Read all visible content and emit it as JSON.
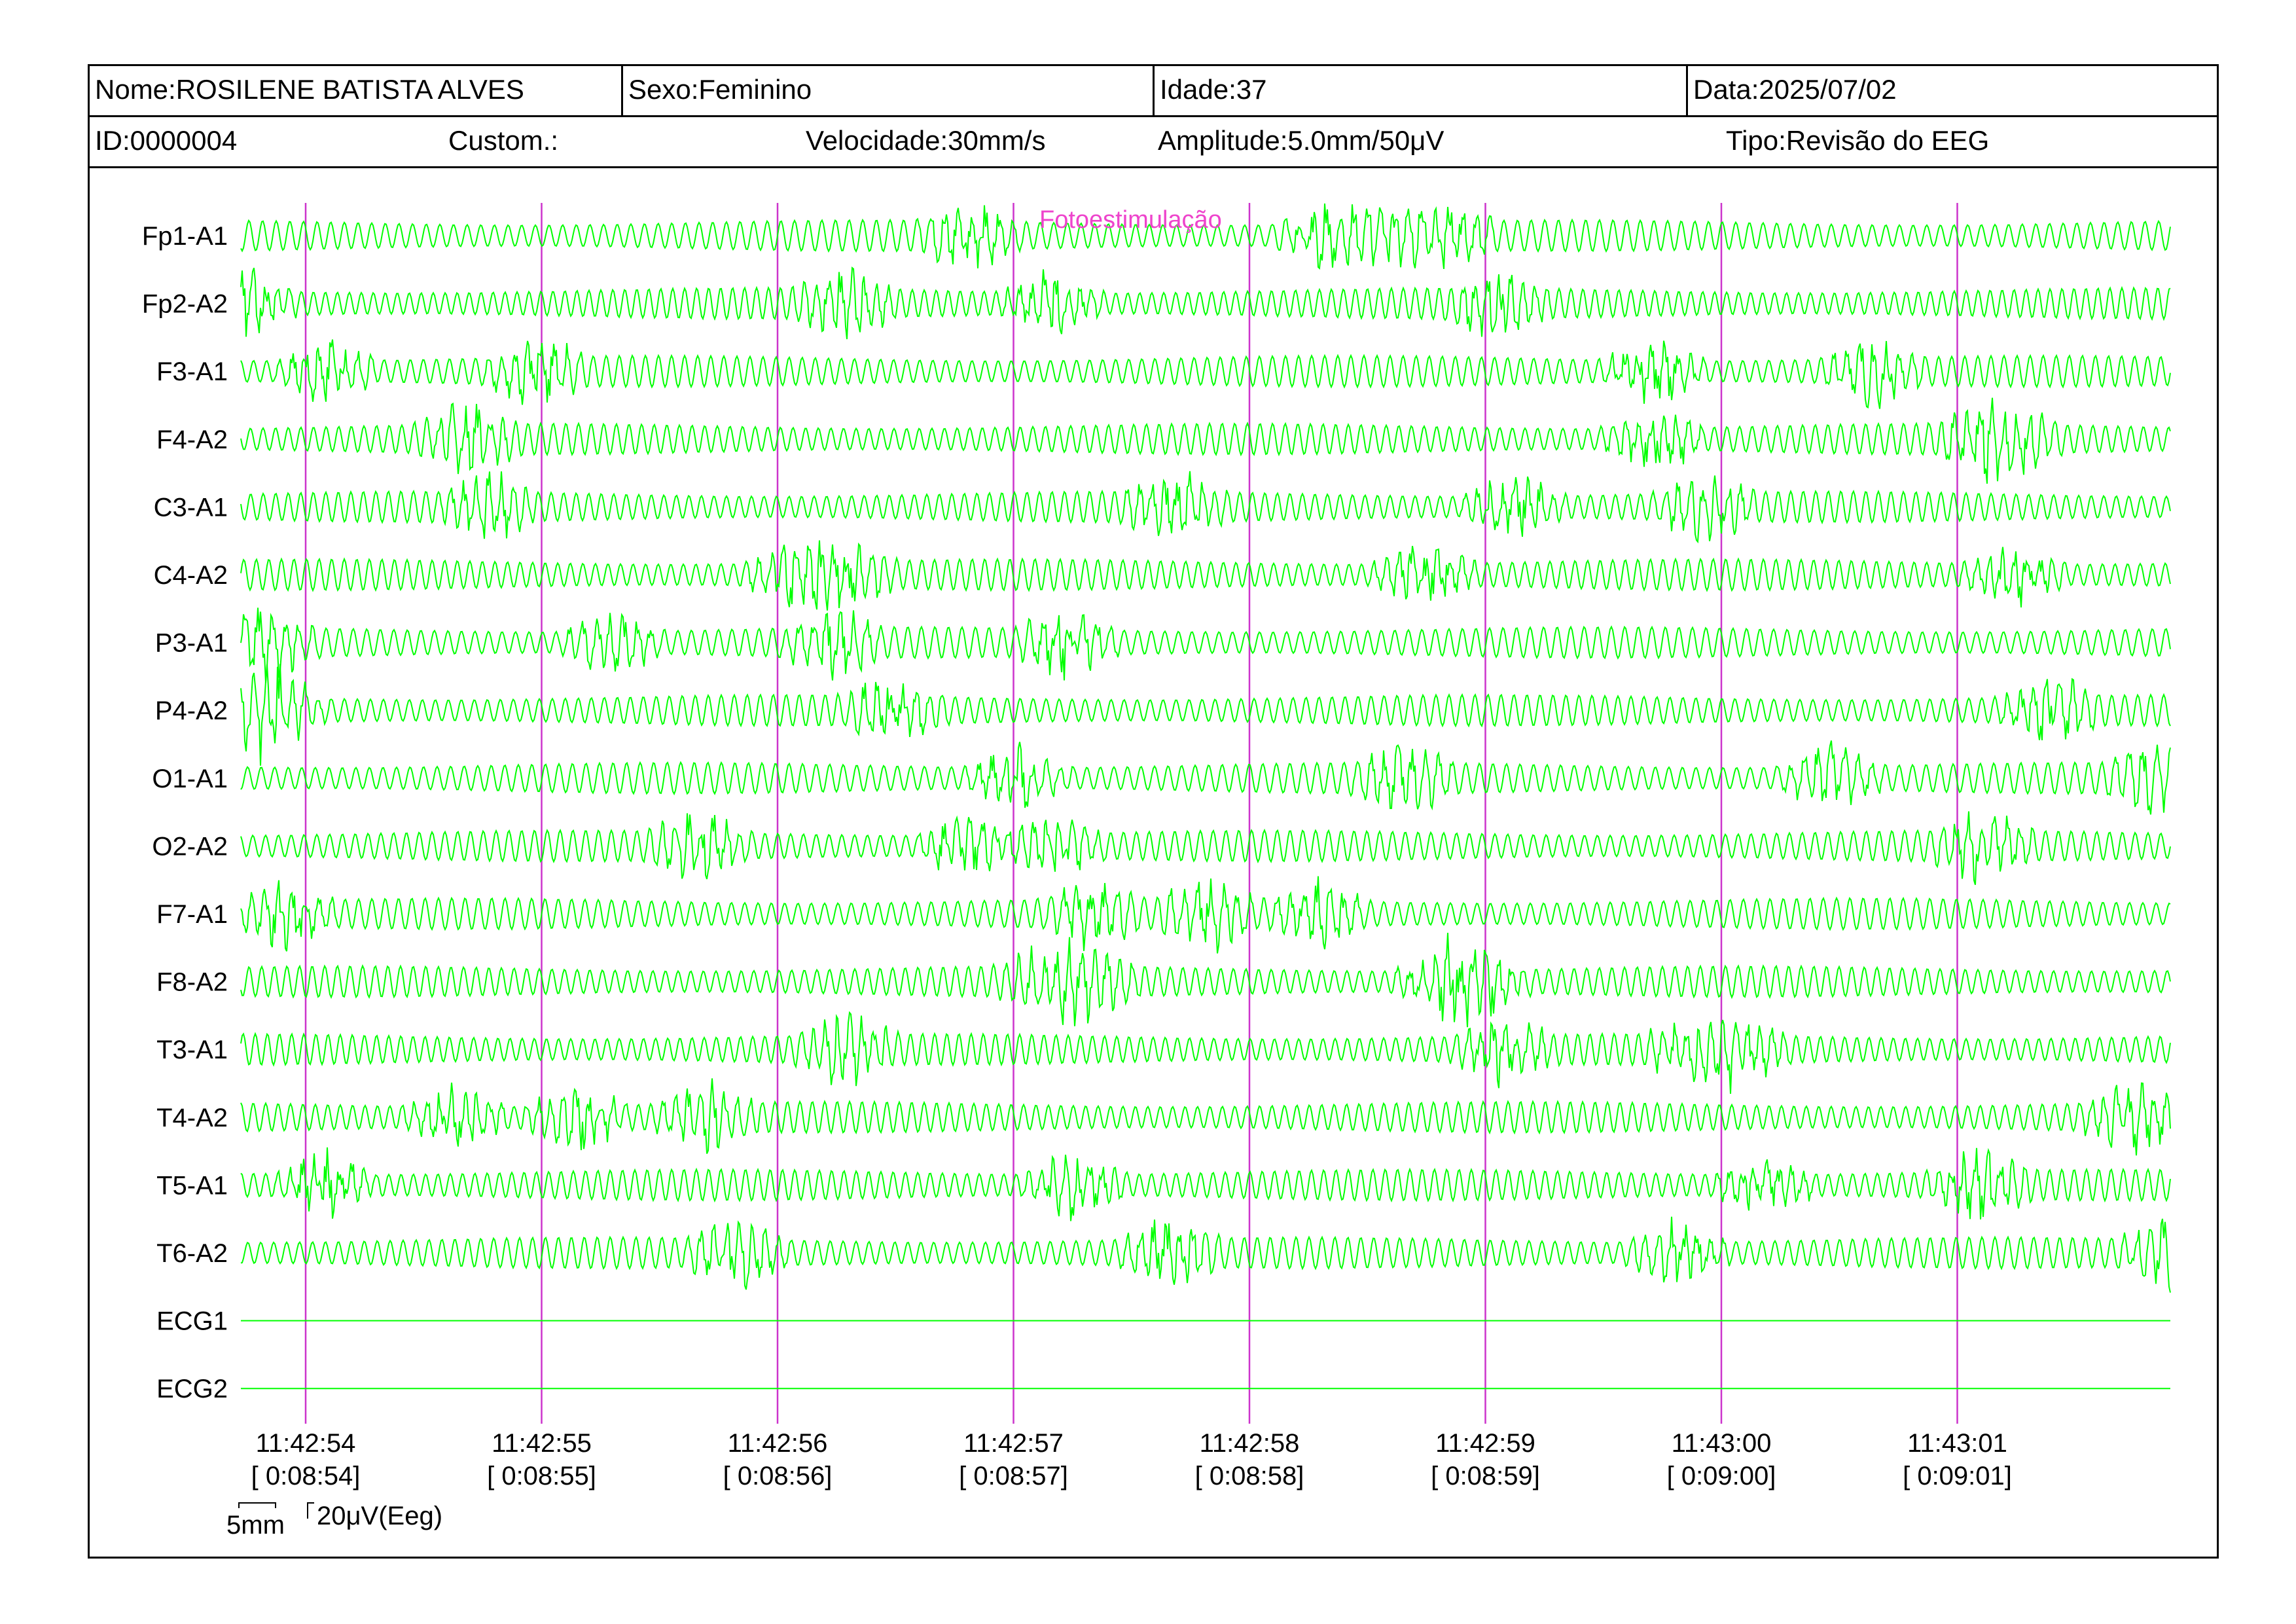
{
  "header": {
    "nome": "Nome:ROSILENE BATISTA ALVES",
    "sexo": "Sexo:Feminino",
    "idade": "Idade:37",
    "data": "Data:2025/07/02",
    "id": "ID:0000004",
    "custom": "Custom.:",
    "velocidade": "Velocidade:30mm/s",
    "amplitude": "Amplitude:5.0mm/50μV",
    "tipo": "Tipo:Revisão do EEG"
  },
  "event_marker": "Fotoestimulação",
  "scale": {
    "time_label": "5mm",
    "amp_label": "20μV(Eeg)"
  },
  "colors": {
    "trace": "#00ff00",
    "marker_line": "#cc33cc",
    "marker_text": "#ee44cc",
    "text": "#000000"
  },
  "chart_data": {
    "type": "line",
    "x_ticks": [
      {
        "time": "11:42:54",
        "elapsed": "[ 0:08:54]"
      },
      {
        "time": "11:42:55",
        "elapsed": "[ 0:08:55]"
      },
      {
        "time": "11:42:56",
        "elapsed": "[ 0:08:56]"
      },
      {
        "time": "11:42:57",
        "elapsed": "[ 0:08:57]"
      },
      {
        "time": "11:42:58",
        "elapsed": "[ 0:08:58]"
      },
      {
        "time": "11:42:59",
        "elapsed": "[ 0:08:59]"
      },
      {
        "time": "11:43:00",
        "elapsed": "[ 0:09:00]"
      },
      {
        "time": "11:43:01",
        "elapsed": "[ 0:09:01]"
      }
    ],
    "channels": [
      {
        "name": "Fp1-A1",
        "kind": "eeg"
      },
      {
        "name": "Fp2-A2",
        "kind": "eeg"
      },
      {
        "name": "F3-A1",
        "kind": "eeg"
      },
      {
        "name": "F4-A2",
        "kind": "eeg"
      },
      {
        "name": "C3-A1",
        "kind": "eeg"
      },
      {
        "name": "C4-A2",
        "kind": "eeg"
      },
      {
        "name": "P3-A1",
        "kind": "eeg"
      },
      {
        "name": "P4-A2",
        "kind": "eeg"
      },
      {
        "name": "O1-A1",
        "kind": "eeg"
      },
      {
        "name": "O2-A2",
        "kind": "eeg"
      },
      {
        "name": "F7-A1",
        "kind": "eeg"
      },
      {
        "name": "F8-A2",
        "kind": "eeg"
      },
      {
        "name": "T3-A1",
        "kind": "eeg"
      },
      {
        "name": "T4-A2",
        "kind": "eeg"
      },
      {
        "name": "T5-A1",
        "kind": "eeg"
      },
      {
        "name": "T6-A2",
        "kind": "eeg"
      },
      {
        "name": "ECG1",
        "kind": "flat"
      },
      {
        "name": "ECG2",
        "kind": "flat"
      }
    ]
  }
}
